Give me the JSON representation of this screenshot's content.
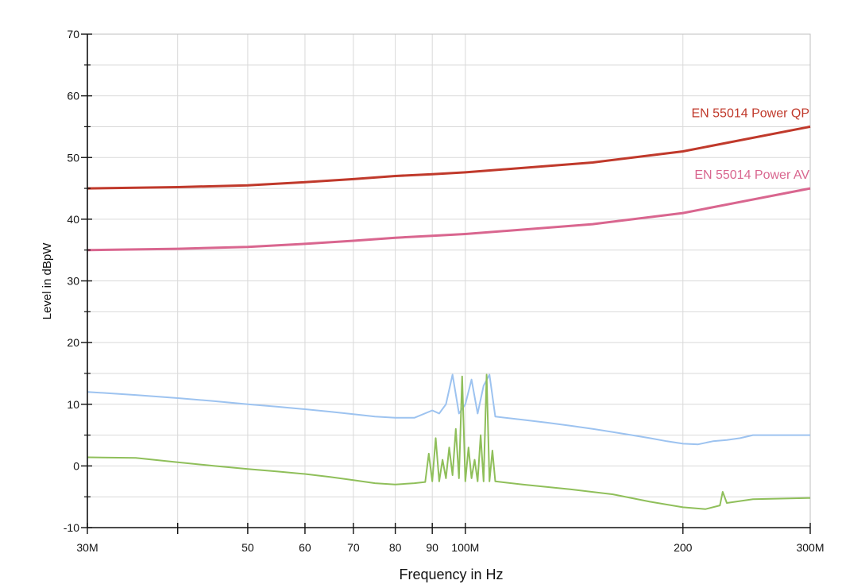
{
  "chart_data": {
    "type": "line",
    "xlabel": "Frequency in Hz",
    "ylabel": "Level in dBpW",
    "x_scale": "log",
    "xlim": [
      30000000,
      300000000
    ],
    "ylim": [
      -10,
      70
    ],
    "grid": true,
    "x_tick_labels": [
      {
        "value": 30000000,
        "label": "30M"
      },
      {
        "value": 50000000,
        "label": "50"
      },
      {
        "value": 60000000,
        "label": "60"
      },
      {
        "value": 70000000,
        "label": "70"
      },
      {
        "value": 80000000,
        "label": "80"
      },
      {
        "value": 90000000,
        "label": "90"
      },
      {
        "value": 100000000,
        "label": "100M"
      },
      {
        "value": 200000000,
        "label": "200"
      },
      {
        "value": 300000000,
        "label": "300M"
      }
    ],
    "x_minor_ticks": [
      40000000
    ],
    "y_tick_labels": [
      -10,
      0,
      10,
      20,
      30,
      40,
      50,
      60,
      70
    ],
    "series": [
      {
        "name": "EN 55014 Power QP",
        "color": "#c0392b",
        "x": [
          30000000,
          40000000,
          50000000,
          60000000,
          70000000,
          80000000,
          90000000,
          100000000,
          150000000,
          200000000,
          300000000
        ],
        "y": [
          45,
          45.2,
          45.5,
          46,
          46.5,
          47,
          47.3,
          47.6,
          49.2,
          51,
          55
        ]
      },
      {
        "name": "EN 55014 Power AV",
        "color": "#d9668f",
        "x": [
          30000000,
          40000000,
          50000000,
          60000000,
          70000000,
          80000000,
          90000000,
          100000000,
          150000000,
          200000000,
          300000000
        ],
        "y": [
          35,
          35.2,
          35.5,
          36,
          36.5,
          37,
          37.3,
          37.6,
          39.2,
          41,
          45
        ]
      },
      {
        "color": "#9dc3f0",
        "x": [
          30000000,
          35000000,
          40000000,
          45000000,
          50000000,
          55000000,
          60000000,
          65000000,
          70000000,
          75000000,
          80000000,
          85000000,
          90000000,
          92000000,
          94000000,
          96000000,
          98000000,
          100000000,
          102000000,
          104000000,
          106000000,
          108000000,
          110000000,
          120000000,
          130000000,
          140000000,
          150000000,
          160000000,
          170000000,
          180000000,
          190000000,
          200000000,
          210000000,
          220000000,
          230000000,
          240000000,
          250000000,
          260000000,
          280000000,
          300000000
        ],
        "y": [
          12,
          11.5,
          11,
          10.5,
          10,
          9.6,
          9.2,
          8.8,
          8.4,
          8,
          7.8,
          7.8,
          9,
          8.5,
          10,
          14.8,
          8.5,
          10,
          14,
          8.5,
          13,
          14.8,
          8,
          7.5,
          7,
          6.5,
          6,
          5.5,
          5,
          4.5,
          4,
          3.6,
          3.5,
          4,
          4.2,
          4.5,
          5,
          5,
          5,
          5
        ]
      },
      {
        "color": "#8fbf5a",
        "x": [
          30000000,
          35000000,
          40000000,
          45000000,
          50000000,
          55000000,
          60000000,
          65000000,
          70000000,
          75000000,
          80000000,
          85000000,
          88000000,
          89000000,
          90000000,
          91000000,
          92000000,
          93000000,
          94000000,
          95000000,
          96000000,
          97000000,
          98000000,
          99000000,
          100000000,
          101000000,
          102000000,
          103000000,
          104000000,
          105000000,
          106000000,
          107000000,
          108000000,
          109000000,
          110000000,
          120000000,
          140000000,
          160000000,
          180000000,
          200000000,
          215000000,
          225000000,
          227000000,
          230000000,
          250000000,
          300000000
        ],
        "y": [
          1.4,
          1.3,
          0.6,
          0,
          -0.5,
          -0.9,
          -1.3,
          -1.8,
          -2.3,
          -2.8,
          -3,
          -2.8,
          -2.6,
          2,
          -2.5,
          4.5,
          -2.5,
          1,
          -2,
          3,
          -1.5,
          6,
          -2,
          14.5,
          -2.5,
          3,
          -2,
          1,
          -2.5,
          5,
          -2.5,
          14.8,
          -2.5,
          2.5,
          -2.5,
          -3,
          -3.8,
          -4.6,
          -5.8,
          -6.7,
          -7,
          -6.4,
          -4.2,
          -6,
          -5.4,
          -5.2
        ]
      }
    ]
  }
}
